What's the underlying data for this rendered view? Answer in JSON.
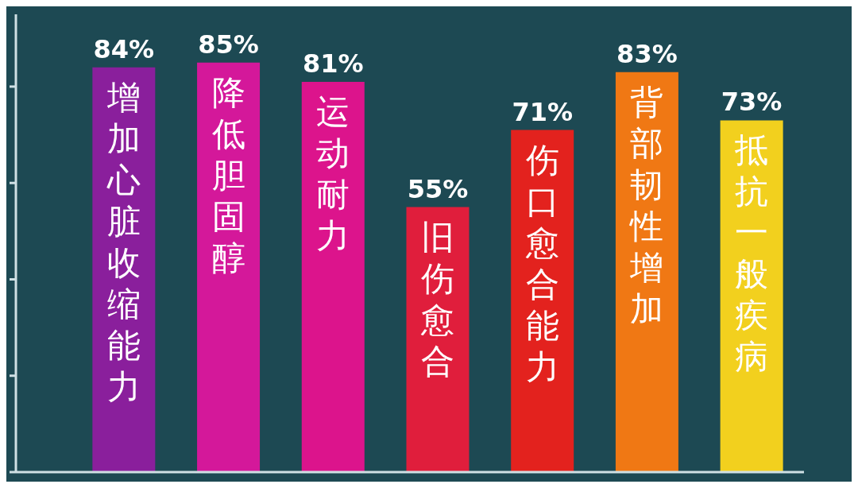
{
  "chart_data": {
    "type": "bar",
    "categories": [
      "增加心脏收缩能力",
      "降低胆固醇",
      "运动耐力",
      "旧伤愈合",
      "伤口愈合能力",
      "背部韧性增加",
      "抵抗一般疾病"
    ],
    "values": [
      84,
      85,
      81,
      55,
      71,
      83,
      73
    ],
    "value_labels": [
      "84%",
      "85%",
      "81%",
      "55%",
      "71%",
      "83%",
      "73%"
    ],
    "colors": [
      "#8a1f9c",
      "#d4189a",
      "#dc148c",
      "#e01e3c",
      "#e3221e",
      "#f07814",
      "#f2d01e"
    ],
    "ylim": [
      0,
      95
    ],
    "yticks": [
      {
        "value": 0,
        "label": null
      },
      {
        "value": 20,
        "label": null
      },
      {
        "value": 40,
        "label": null
      },
      {
        "value": 60,
        "label": null
      },
      {
        "value": 80,
        "label": null
      }
    ]
  }
}
